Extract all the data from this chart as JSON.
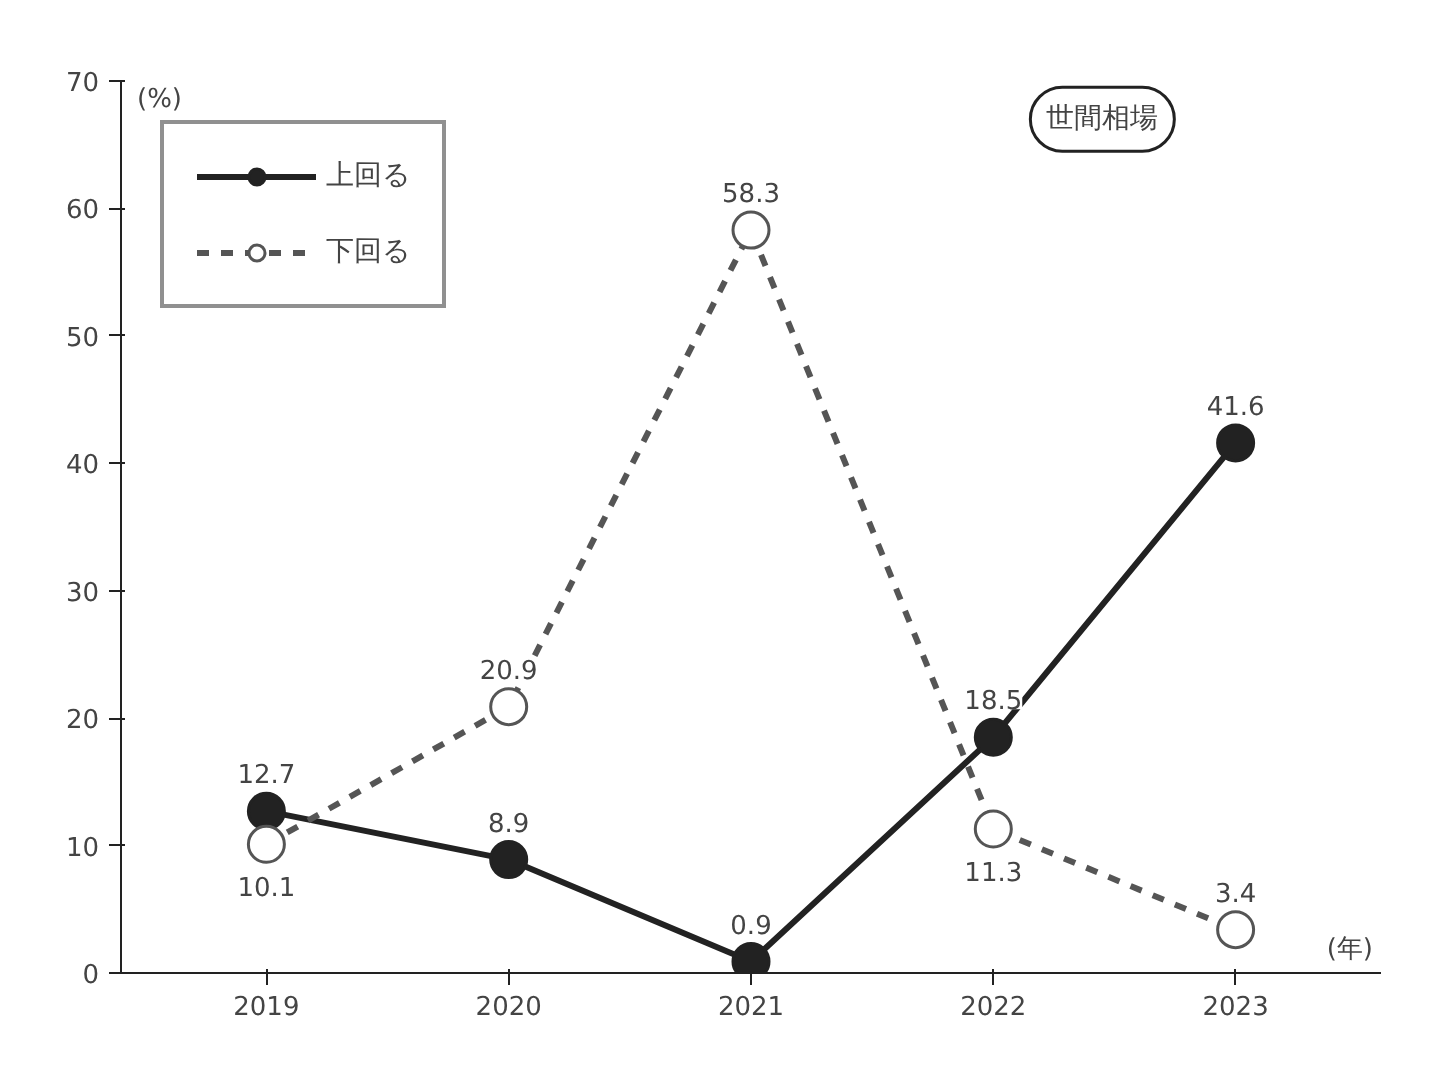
{
  "chart_data": {
    "type": "line",
    "categories": [
      "2019",
      "2020",
      "2021",
      "2022",
      "2023"
    ],
    "xlabel": "(年)",
    "ylabel": "(%)",
    "ylim": [
      0,
      70
    ],
    "yticks": [
      0,
      10,
      20,
      30,
      40,
      50,
      60,
      70
    ],
    "series": [
      {
        "name": "上回る",
        "color": "#222222",
        "values": [
          12.7,
          8.9,
          0.9,
          18.5,
          41.6
        ],
        "line_style": "solid"
      },
      {
        "name": "下回る",
        "color": "#555555",
        "values": [
          10.1,
          20.9,
          58.3,
          11.3,
          3.4
        ],
        "line_style": "dashed"
      }
    ],
    "marker": "circle",
    "data_labels": true,
    "grid": false,
    "legend": "top left",
    "annotations": [
      "世間相場"
    ]
  }
}
